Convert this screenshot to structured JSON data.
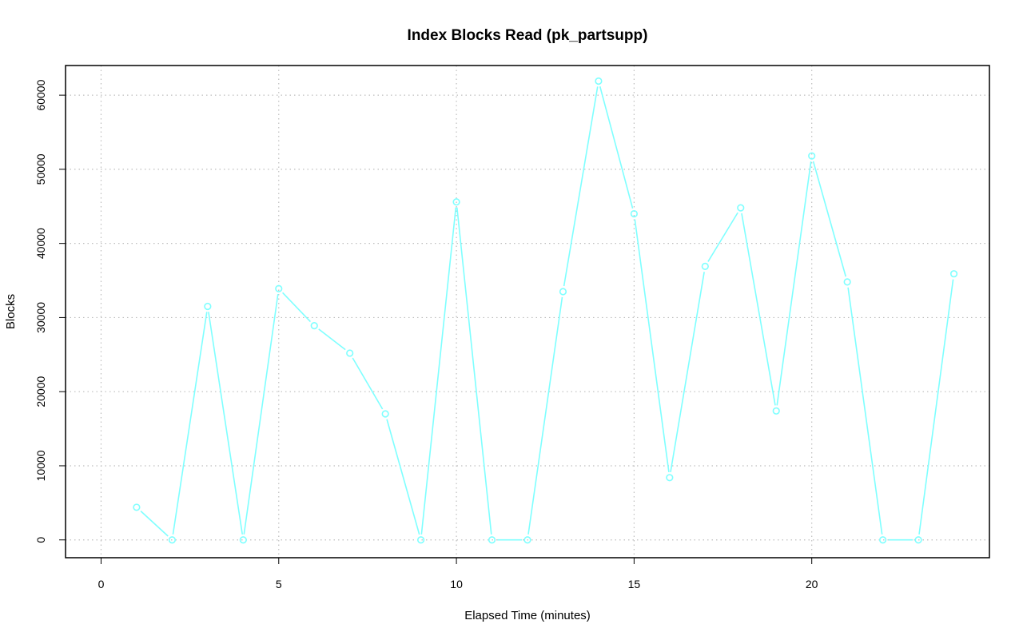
{
  "chart_data": {
    "type": "line",
    "title": "Index Blocks Read (pk_partsupp)",
    "xlabel": "Elapsed Time (minutes)",
    "ylabel": "Blocks",
    "xlim": [
      -1,
      25
    ],
    "ylim": [
      -2400,
      64000
    ],
    "xticks": [
      0,
      5,
      10,
      15,
      20
    ],
    "yticks": [
      0,
      10000,
      20000,
      30000,
      40000,
      50000,
      60000
    ],
    "grid": true,
    "color": "#7fffff",
    "series": [
      {
        "x": [
          1,
          2,
          3,
          4,
          5,
          6,
          7,
          8,
          9,
          10,
          11,
          12,
          13,
          14,
          15,
          16,
          17,
          18,
          19,
          20,
          21,
          22,
          23,
          24
        ],
        "y": [
          4400,
          0,
          31500,
          0,
          33900,
          28900,
          25200,
          17000,
          0,
          45600,
          0,
          0,
          33500,
          61900,
          44000,
          8400,
          36900,
          44800,
          17400,
          51800,
          34800,
          0,
          0,
          35900
        ]
      }
    ]
  }
}
